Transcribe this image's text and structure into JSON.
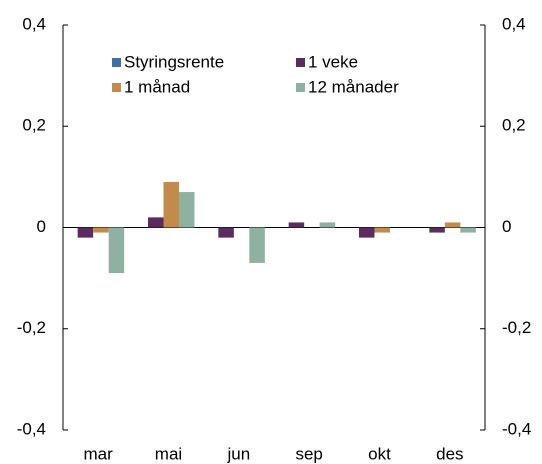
{
  "chart_data": {
    "type": "bar",
    "categories": [
      "mar",
      "mai",
      "jun",
      "sep",
      "okt",
      "des"
    ],
    "series": [
      {
        "name": "Styringsrente",
        "color": "#3f6ea6",
        "values": [
          0,
          0,
          0,
          0,
          0,
          0
        ]
      },
      {
        "name": "1 veke",
        "color": "#5b2c5f",
        "values": [
          -0.02,
          0.02,
          -0.02,
          0.01,
          -0.02,
          -0.01
        ]
      },
      {
        "name": "1 månad",
        "color": "#c38b49",
        "values": [
          -0.01,
          0.09,
          0,
          0,
          -0.01,
          0.01
        ]
      },
      {
        "name": "12 månader",
        "color": "#8fb1a1",
        "values": [
          -0.09,
          0.07,
          -0.07,
          0.01,
          0,
          -0.01
        ]
      }
    ],
    "ylim": [
      -0.4,
      0.4
    ],
    "yticks": [
      {
        "value": -0.4,
        "label": "-0,4"
      },
      {
        "value": -0.2,
        "label": "-0,2"
      },
      0,
      {
        "value": 0.2,
        "label": "0,2"
      },
      {
        "value": 0.4,
        "label": "0,4"
      }
    ],
    "y2lim": [
      -0.4,
      0.4
    ],
    "y2ticks": [
      {
        "value": -0.4,
        "label": "-0,4"
      },
      {
        "value": -0.2,
        "label": "-0,2"
      },
      0,
      {
        "value": 0.2,
        "label": "0,2"
      },
      {
        "value": 0.4,
        "label": "0,4"
      }
    ],
    "legend": "top"
  }
}
